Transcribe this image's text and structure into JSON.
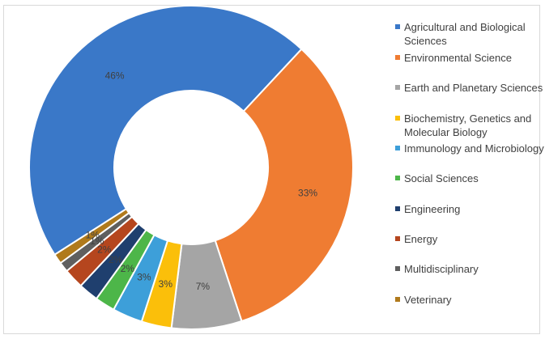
{
  "chart_data": {
    "type": "pie",
    "donut": true,
    "legend_position": "right",
    "categories": [
      "Agricultural and Biological Sciences",
      "Environmental Science",
      "Earth and Planetary Sciences",
      "Biochemistry, Genetics and Molecular Biology",
      "Immunology and Microbiology",
      "Social Sciences",
      "Engineering",
      "Energy",
      "Multidisciplinary",
      "Veterinary"
    ],
    "values": [
      46,
      33,
      7,
      3,
      3,
      2,
      2,
      2,
      1,
      1
    ],
    "labels": [
      "46%",
      "33%",
      "7%",
      "3%",
      "3%",
      "2%",
      "2%",
      "2%",
      "1%",
      "1%"
    ],
    "colors": [
      "#3a78c8",
      "#ef7c32",
      "#a5a5a5",
      "#fbbf0a",
      "#3d9fd9",
      "#4db649",
      "#1f3f6e",
      "#b5461e",
      "#5f5f5f",
      "#b07a1c"
    ]
  }
}
